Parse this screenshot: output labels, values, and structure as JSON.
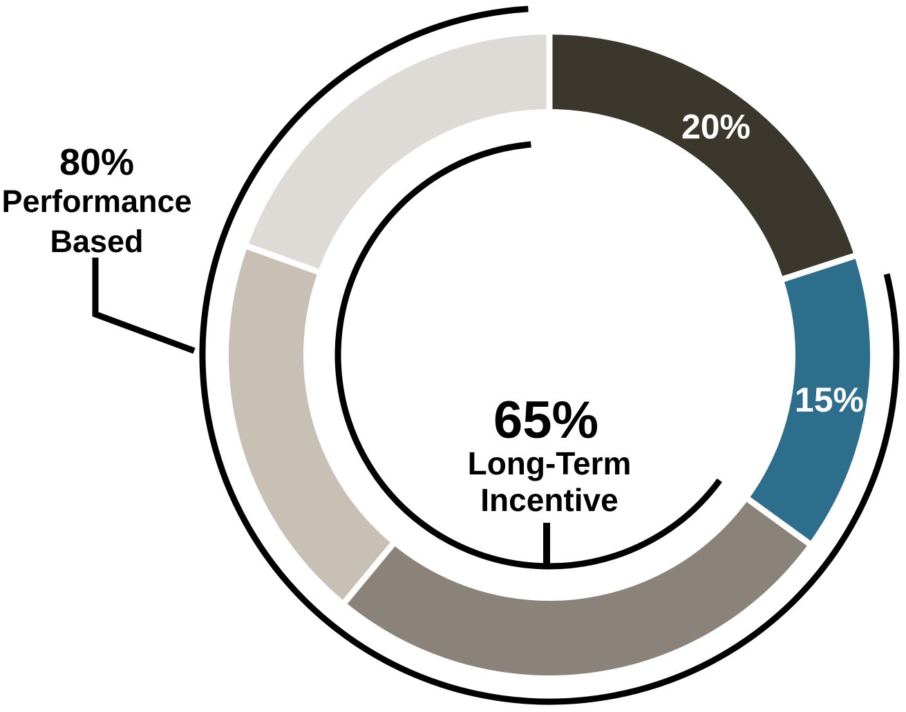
{
  "chart_data": {
    "type": "pie",
    "subtype": "donut",
    "title": "",
    "layout": {
      "legend": "none",
      "start_angle_deg": 0,
      "direction": "clockwise",
      "grid": false
    },
    "slices": [
      {
        "label": "20%",
        "value": 20,
        "color": "#3B372D",
        "label_color": "#FFFFFF"
      },
      {
        "label": "15%",
        "value": 15,
        "color": "#2D6E8D",
        "label_color": "#FFFFFF"
      },
      {
        "label": "",
        "value": 26,
        "color": "#8B8379",
        "label_color": ""
      },
      {
        "label": "",
        "value": 19.5,
        "color": "#C8BFB5",
        "label_color": ""
      },
      {
        "label": "",
        "value": 19.5,
        "color": "#DEDAD6",
        "label_color": ""
      }
    ],
    "center_label": {
      "value": "65%",
      "lines": [
        "Long-Term",
        "Incentive"
      ]
    },
    "outer_bracket": {
      "value": "80%",
      "lines": [
        "Performance",
        "Based"
      ],
      "percent": 80
    },
    "inner_bracket": {
      "percent": 65
    },
    "colors": {
      "bracket_arc": "#000000",
      "separator": "#FFFFFF",
      "background": "#FFFFFF"
    }
  }
}
